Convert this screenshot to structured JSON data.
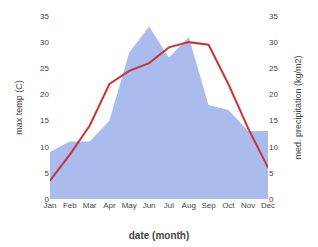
{
  "chart_data": {
    "type": "line",
    "categories": [
      "Jan",
      "Feb",
      "Mar",
      "Apr",
      "May",
      "Jun",
      "Jul",
      "Aug",
      "Sep",
      "Oct",
      "Nov",
      "Dec"
    ],
    "series": [
      {
        "type": "area",
        "axis": "y2",
        "color": "#aabbee",
        "values": [
          9,
          11,
          11,
          15,
          28,
          33,
          27,
          31,
          18,
          17,
          13,
          13
        ]
      },
      {
        "type": "line",
        "color": "#cc3333",
        "values": [
          3.5,
          8.5,
          14.0,
          22.0,
          24.5,
          26.0,
          29.0,
          30.0,
          29.5,
          22.0,
          13.5,
          6.0
        ]
      }
    ],
    "xlabel": "date (month)",
    "ylabel": "max temp (C)",
    "y2label": "med. precipitation (kg/m2)",
    "ylim": [
      0,
      35
    ],
    "yticks": [
      0,
      5,
      10,
      15,
      20,
      25,
      30,
      35
    ],
    "y2lim": [
      0,
      35
    ],
    "y2ticks": [
      0,
      5,
      10,
      15,
      20,
      25,
      30,
      35
    ],
    "grid": false
  }
}
